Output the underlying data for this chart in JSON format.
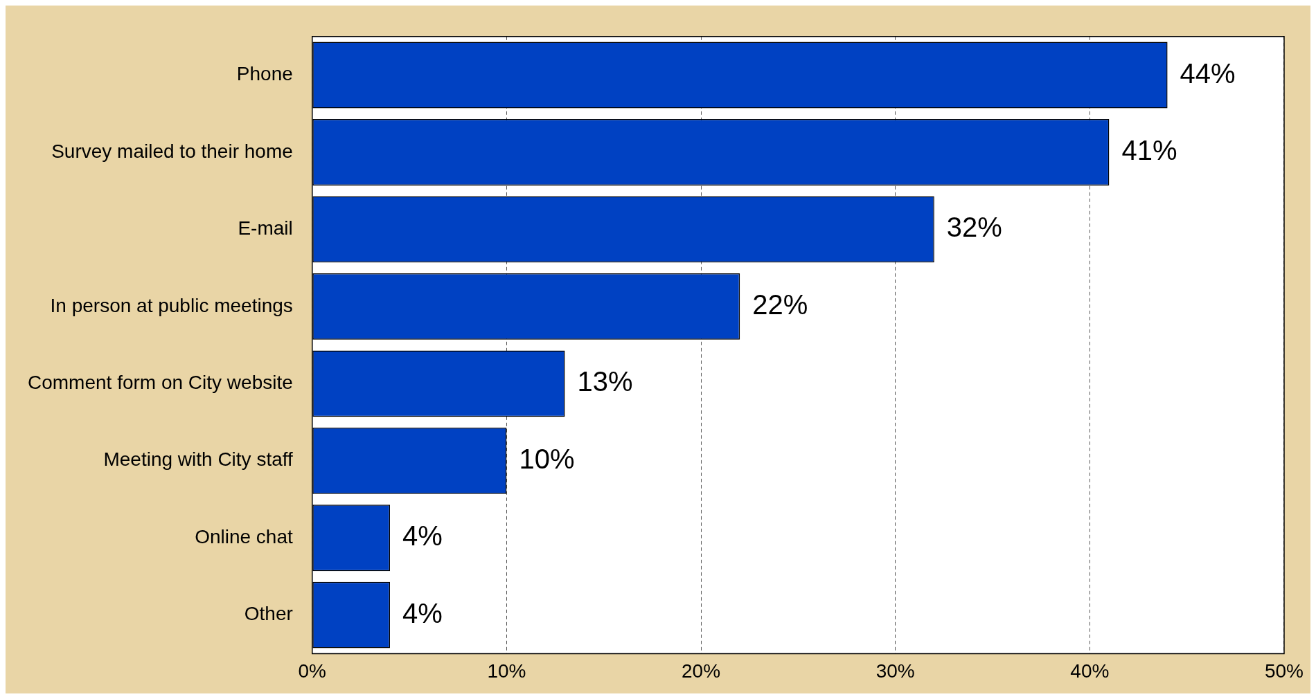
{
  "chart_data": {
    "type": "bar",
    "orientation": "horizontal",
    "categories": [
      "Phone",
      "Survey mailed to their home",
      "E-mail",
      "In person at public meetings",
      "Comment form on City website",
      "Meeting with City staff",
      "Online chat",
      "Other"
    ],
    "values": [
      44,
      41,
      32,
      22,
      13,
      10,
      4,
      4
    ],
    "value_labels": [
      "44%",
      "41%",
      "32%",
      "22%",
      "13%",
      "10%",
      "4%",
      "4%"
    ],
    "color": "#0041c2",
    "xlim": [
      0,
      50
    ],
    "xticks": [
      {
        "value": 0,
        "label": "0%"
      },
      {
        "value": 10,
        "label": "10%"
      },
      {
        "value": 20,
        "label": "20%"
      },
      {
        "value": 30,
        "label": "30%"
      },
      {
        "value": 40,
        "label": "40%"
      },
      {
        "value": 50,
        "label": "50%"
      }
    ],
    "grid": "x"
  }
}
